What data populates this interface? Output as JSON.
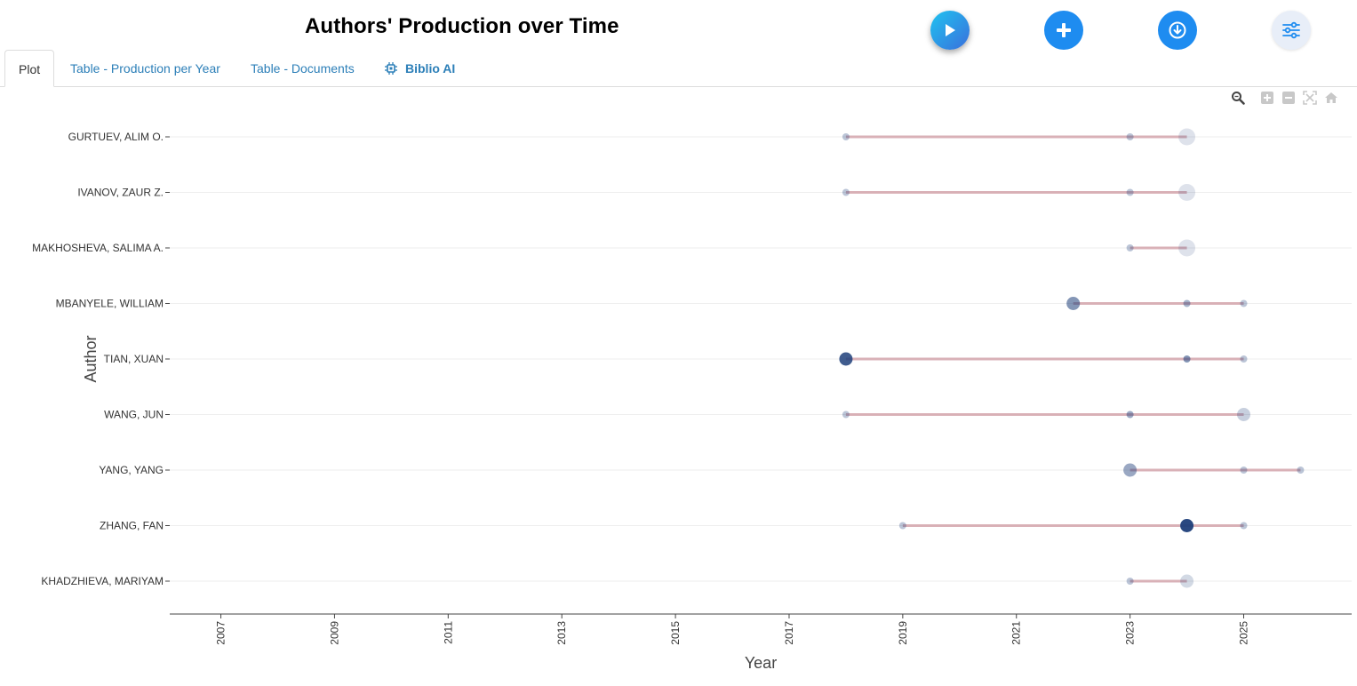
{
  "header": {
    "title": "Authors' Production over Time"
  },
  "tabs": [
    {
      "label": "Plot"
    },
    {
      "label": "Table - Production per Year"
    },
    {
      "label": "Table - Documents"
    },
    {
      "label": "Biblio AI"
    }
  ],
  "colors": {
    "accent": "#1e8cf0",
    "tab_link": "#2c7fb8",
    "segment": "#d4a4ab",
    "point_base": "#1f3f7a"
  },
  "chart_data": {
    "type": "scatter",
    "title": "Authors' Production over Time",
    "xlabel": "Year",
    "ylabel": "Author",
    "xlim": [
      2006.1,
      2026.9
    ],
    "xticks": [
      "2007",
      "2009",
      "2011",
      "2013",
      "2015",
      "2017",
      "2019",
      "2021",
      "2023",
      "2025"
    ],
    "authors": [
      {
        "name": "GURTUEV, ALIM O.",
        "span": [
          2018,
          2024
        ],
        "points": [
          {
            "year": 2018,
            "size": 1,
            "intensity": 0.3
          },
          {
            "year": 2023,
            "size": 1,
            "intensity": 0.3
          },
          {
            "year": 2024,
            "size": 3,
            "intensity": 0.15
          }
        ]
      },
      {
        "name": "IVANOV, ZAUR Z.",
        "span": [
          2018,
          2024
        ],
        "points": [
          {
            "year": 2018,
            "size": 1,
            "intensity": 0.3
          },
          {
            "year": 2023,
            "size": 1,
            "intensity": 0.3
          },
          {
            "year": 2024,
            "size": 3,
            "intensity": 0.15
          }
        ]
      },
      {
        "name": "MAKHOSHEVA, SALIMA A.",
        "span": [
          2023,
          2024
        ],
        "points": [
          {
            "year": 2023,
            "size": 1,
            "intensity": 0.3
          },
          {
            "year": 2024,
            "size": 3,
            "intensity": 0.15
          }
        ]
      },
      {
        "name": "MBANYELE, WILLIAM",
        "span": [
          2022,
          2025
        ],
        "points": [
          {
            "year": 2022,
            "size": 2,
            "intensity": 0.55
          },
          {
            "year": 2024,
            "size": 1,
            "intensity": 0.4
          },
          {
            "year": 2025,
            "size": 1,
            "intensity": 0.3
          }
        ]
      },
      {
        "name": "TIAN, XUAN",
        "span": [
          2018,
          2025
        ],
        "points": [
          {
            "year": 2018,
            "size": 2,
            "intensity": 0.85
          },
          {
            "year": 2024,
            "size": 1,
            "intensity": 0.55
          },
          {
            "year": 2025,
            "size": 1,
            "intensity": 0.3
          }
        ]
      },
      {
        "name": "WANG, JUN",
        "span": [
          2018,
          2025
        ],
        "points": [
          {
            "year": 2018,
            "size": 1,
            "intensity": 0.3
          },
          {
            "year": 2023,
            "size": 1,
            "intensity": 0.45
          },
          {
            "year": 2025,
            "size": 2,
            "intensity": 0.25
          }
        ]
      },
      {
        "name": "YANG, YANG",
        "span": [
          2023,
          2026
        ],
        "points": [
          {
            "year": 2023,
            "size": 2,
            "intensity": 0.45
          },
          {
            "year": 2025,
            "size": 1,
            "intensity": 0.3
          },
          {
            "year": 2026,
            "size": 1,
            "intensity": 0.3
          }
        ]
      },
      {
        "name": "ZHANG, FAN",
        "span": [
          2019,
          2025
        ],
        "points": [
          {
            "year": 2019,
            "size": 1,
            "intensity": 0.3
          },
          {
            "year": 2024,
            "size": 2,
            "intensity": 0.95
          },
          {
            "year": 2025,
            "size": 1,
            "intensity": 0.3
          }
        ]
      },
      {
        "name": "KHADZHIEVA, MARIYAM",
        "span": [
          2023,
          2024
        ],
        "points": [
          {
            "year": 2023,
            "size": 1,
            "intensity": 0.3
          },
          {
            "year": 2024,
            "size": 2,
            "intensity": 0.2
          }
        ]
      }
    ]
  }
}
